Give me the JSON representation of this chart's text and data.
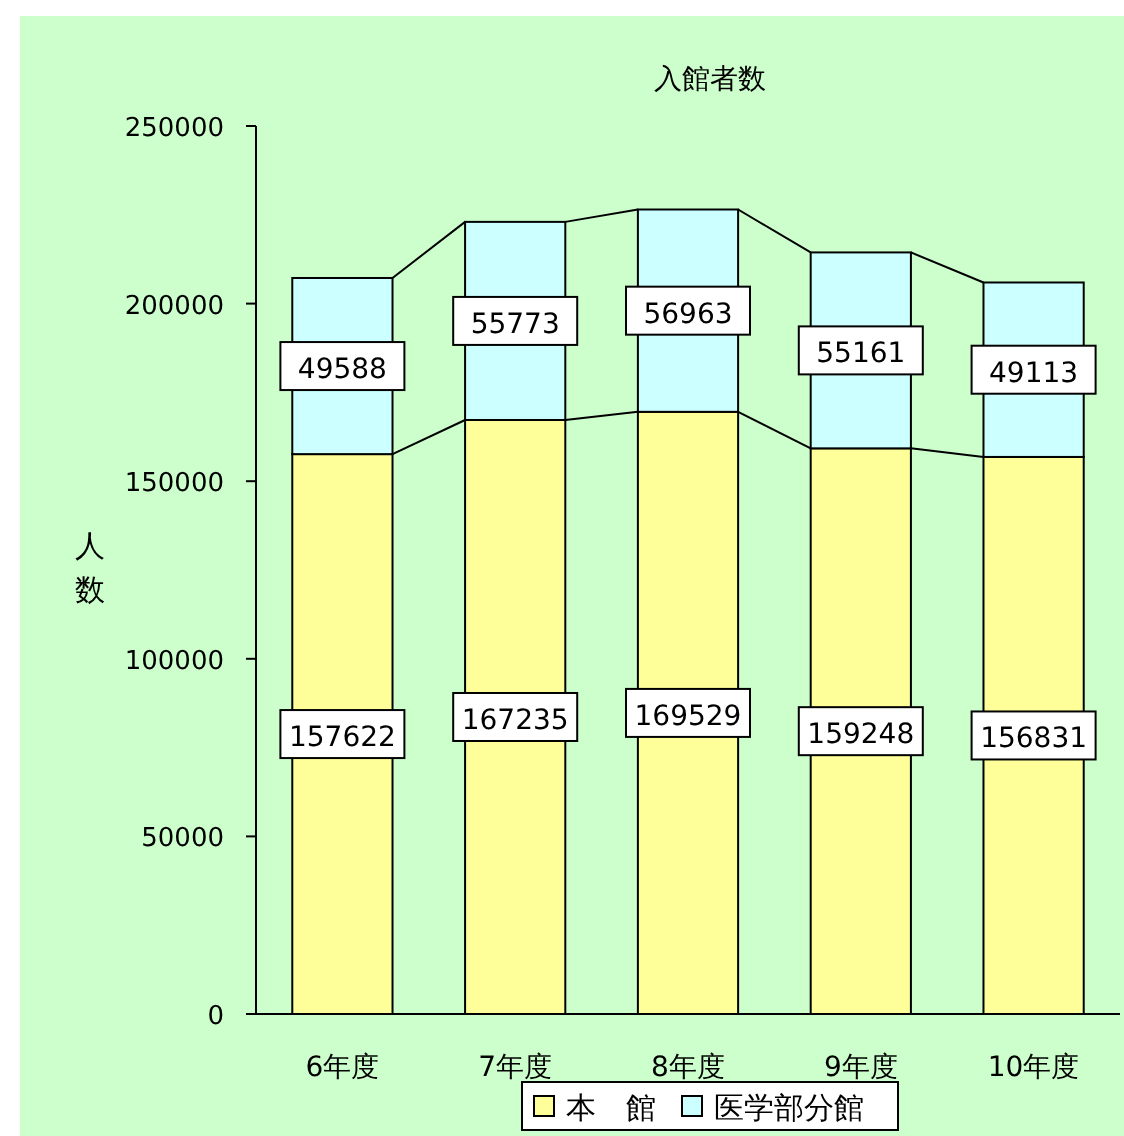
{
  "chart_data": {
    "type": "bar",
    "stacked": true,
    "title": "入館者数",
    "ylabel": "人数",
    "categories": [
      "6年度",
      "7年度",
      "8年度",
      "9年度",
      "10年度"
    ],
    "series": [
      {
        "name": "本　館",
        "color": "#ffff99",
        "values": [
          157622,
          167235,
          169529,
          159248,
          156831
        ]
      },
      {
        "name": "医学部分館",
        "color": "#ccffff",
        "values": [
          49588,
          55773,
          56963,
          55161,
          49113
        ]
      }
    ],
    "ylim": [
      0,
      250000
    ],
    "yticks": [
      0,
      50000,
      100000,
      150000,
      200000,
      250000
    ],
    "data_labels": true,
    "grid": false,
    "legend": "bottom"
  }
}
